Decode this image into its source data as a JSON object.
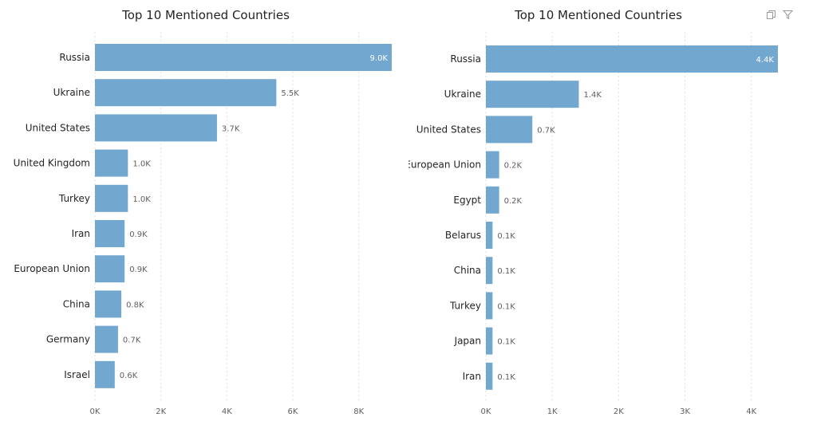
{
  "chart_data": [
    {
      "type": "bar",
      "orientation": "horizontal",
      "title": "Top 10 Mentioned Countries",
      "categories": [
        "Russia",
        "Ukraine",
        "United States",
        "United Kingdom",
        "Turkey",
        "Iran",
        "European Union",
        "China",
        "Germany",
        "Israel"
      ],
      "values": [
        9000,
        5500,
        3700,
        1000,
        1000,
        900,
        900,
        800,
        700,
        600
      ],
      "data_labels": [
        "9.0K",
        "5.5K",
        "3.7K",
        "1.0K",
        "1.0K",
        "0.9K",
        "0.9K",
        "0.8K",
        "0.7K",
        "0.6K"
      ],
      "xlim": [
        0,
        9000
      ],
      "x_ticks": [
        0,
        2000,
        4000,
        6000,
        8000
      ],
      "x_tick_labels": [
        "0K",
        "2K",
        "4K",
        "6K",
        "8K"
      ],
      "grid": true,
      "bar_color": "#72a7cf"
    },
    {
      "type": "bar",
      "orientation": "horizontal",
      "title": "Top 10 Mentioned Countries",
      "categories": [
        "Russia",
        "Ukraine",
        "United States",
        "European Union",
        "Egypt",
        "Belarus",
        "China",
        "Turkey",
        "Japan",
        "Iran"
      ],
      "values": [
        4400,
        1400,
        700,
        200,
        200,
        100,
        100,
        100,
        100,
        100
      ],
      "data_labels": [
        "4.4K",
        "1.4K",
        "0.7K",
        "0.2K",
        "0.2K",
        "0.1K",
        "0.1K",
        "0.1K",
        "0.1K",
        "0.1K"
      ],
      "xlim": [
        0,
        4400
      ],
      "x_ticks": [
        0,
        1000,
        2000,
        3000,
        4000
      ],
      "x_tick_labels": [
        "0K",
        "1K",
        "2K",
        "3K",
        "4K"
      ],
      "grid": true,
      "bar_color": "#72a7cf"
    }
  ],
  "visual_header": {
    "icons": [
      "copy-icon",
      "filter-icon"
    ]
  }
}
